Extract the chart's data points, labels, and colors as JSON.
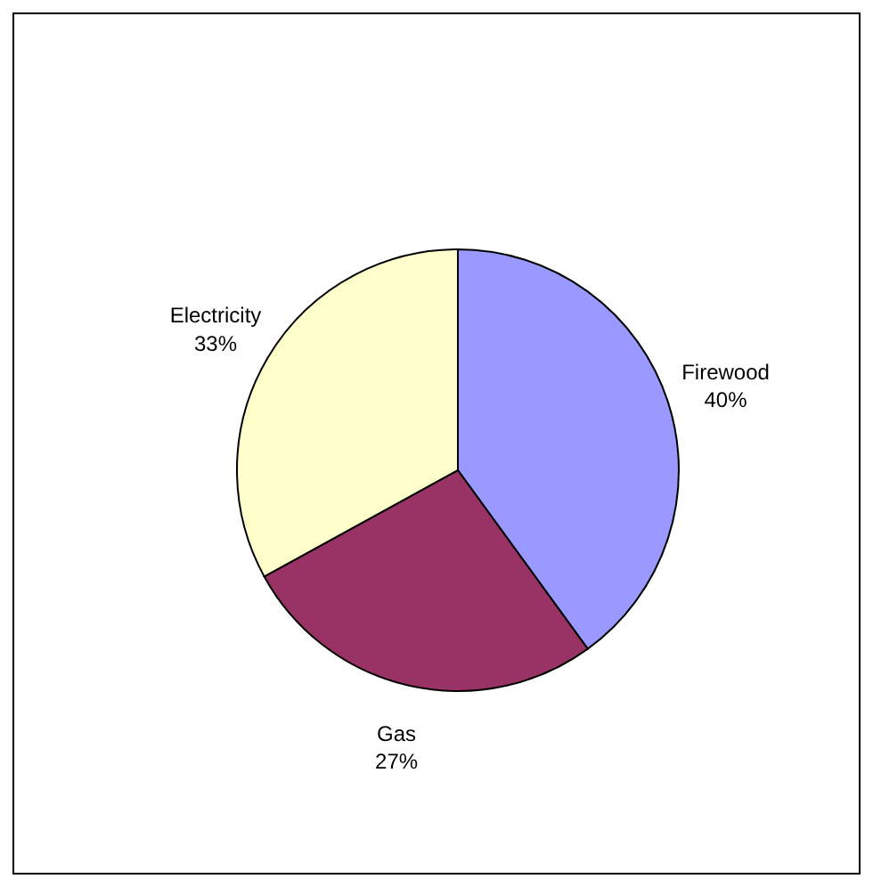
{
  "chart_data": {
    "type": "pie",
    "categories": [
      "Firewood",
      "Gas",
      "Electricity"
    ],
    "values": [
      40,
      27,
      33
    ],
    "colors": [
      "#9999ff",
      "#993366",
      "#ffffcc"
    ],
    "value_labels": [
      "40%",
      "27%",
      "33%"
    ],
    "legend": false
  }
}
